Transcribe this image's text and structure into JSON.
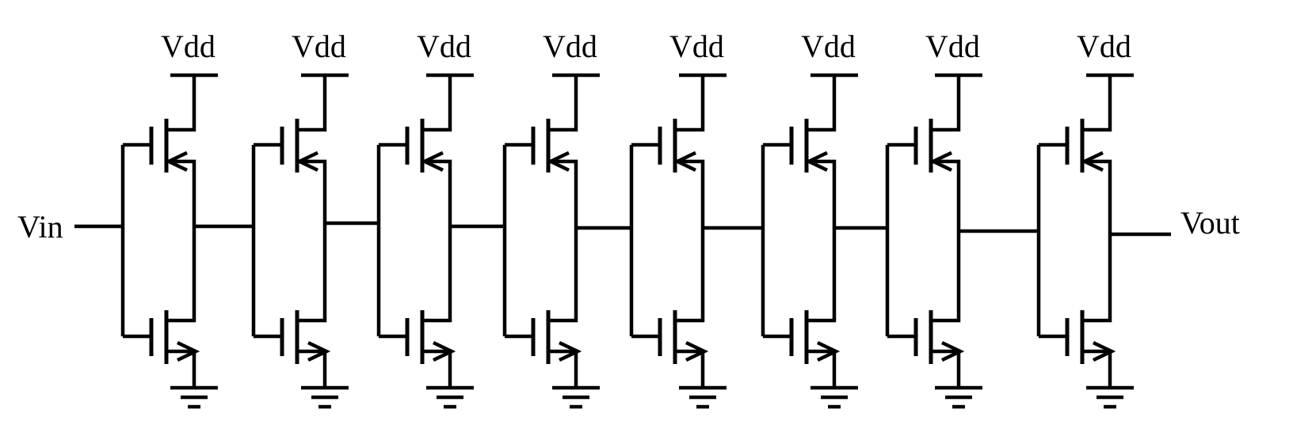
{
  "circuit": {
    "input_label": "Vin",
    "output_label": "Vout",
    "supply_label": "Vdd",
    "stages": [
      {
        "name": "inverter-1"
      },
      {
        "name": "inverter-2"
      },
      {
        "name": "inverter-3"
      },
      {
        "name": "inverter-4"
      },
      {
        "name": "inverter-5"
      },
      {
        "name": "inverter-6"
      },
      {
        "name": "inverter-7"
      },
      {
        "name": "inverter-8"
      }
    ]
  }
}
